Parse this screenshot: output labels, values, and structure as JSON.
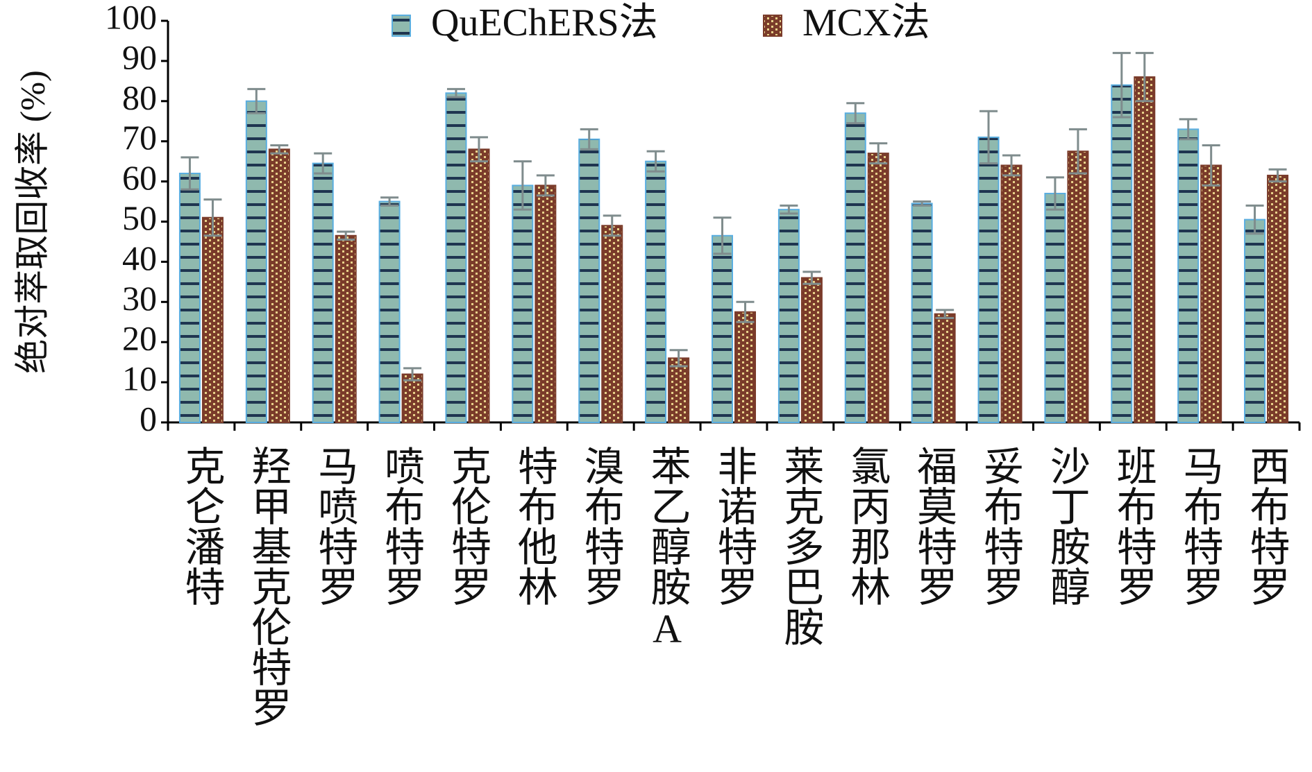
{
  "chart_data": {
    "type": "bar",
    "y_label": "绝对萃取回收率 (%)",
    "categories": [
      "克仑潘特",
      "羟甲基克伦特罗",
      "马喷特罗",
      "喷布特罗",
      "克伦特罗",
      "特布他林",
      "溴布特罗",
      "苯乙醇胺A",
      "非诺特罗",
      "莱克多巴胺",
      "氯丙那林",
      "福莫特罗",
      "妥布特罗",
      "沙丁胺醇",
      "班布特罗",
      "马布特罗",
      "西布特罗"
    ],
    "series": [
      {
        "name": "QuEChERS法",
        "color": "#8fb9ae",
        "values": [
          62,
          80,
          64.5,
          55,
          82,
          59,
          70.5,
          65,
          46.5,
          53,
          77,
          54.5,
          71,
          57,
          84,
          73,
          50.5
        ],
        "errors": [
          4,
          3,
          2.5,
          1,
          1,
          6,
          2.5,
          2.5,
          4.5,
          1,
          2.5,
          0.5,
          6.5,
          4,
          8,
          2.5,
          3.5
        ]
      },
      {
        "name": "MCX法",
        "color": "#7a3b2a",
        "values": [
          51,
          68,
          46.5,
          12,
          68,
          59,
          49,
          16,
          27.5,
          36,
          67,
          27,
          64,
          67.5,
          86,
          64,
          61.5
        ],
        "errors": [
          4.5,
          1,
          1,
          1.5,
          3,
          2.5,
          2.5,
          2,
          2.5,
          1.5,
          2.5,
          1,
          2.5,
          5.5,
          6,
          5,
          1.5
        ]
      }
    ],
    "ylim": [
      0,
      100
    ],
    "yticks": [
      0,
      10,
      20,
      30,
      40,
      50,
      60,
      70,
      80,
      90,
      100
    ],
    "grid": false
  }
}
